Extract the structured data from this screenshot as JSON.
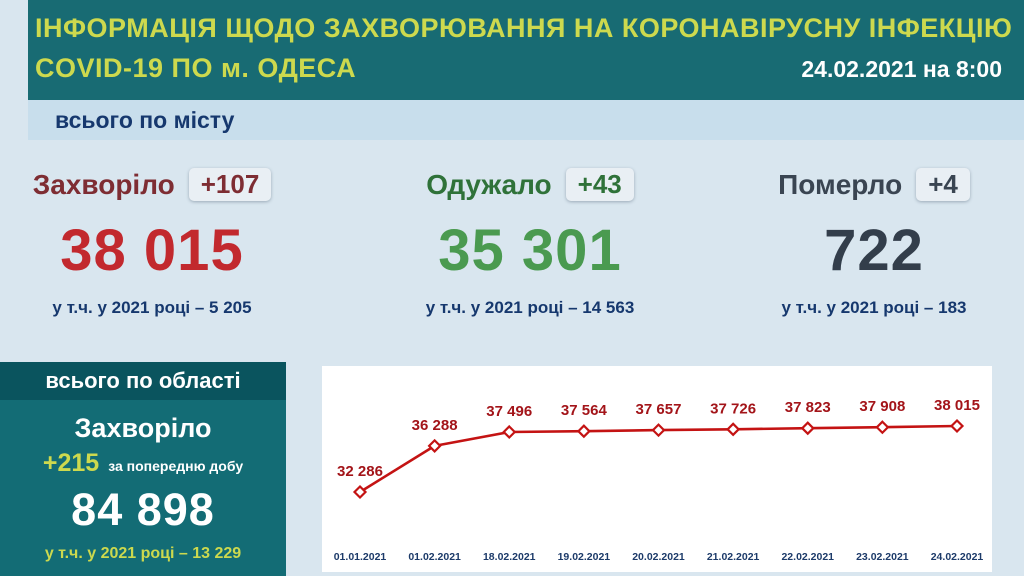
{
  "header": {
    "title_line1": "ІНФОРМАЦІЯ ЩОДО ЗАХВОРЮВАННЯ НА КОРОНАВІРУСНУ ІНФЕКЦІЮ",
    "title_line2": "COVID-19 ПО м. ОДЕСА",
    "date": "24.02.2021 на 8:00"
  },
  "city": {
    "label": "всього по місту",
    "stats": [
      {
        "title": "Захворіло",
        "delta": "+107",
        "value": "38 015",
        "subtitle": "у т.ч. у 2021 році – 5 205"
      },
      {
        "title": "Одужало",
        "delta": "+43",
        "value": "35 301",
        "subtitle": "у т.ч. у 2021 році – 14 563"
      },
      {
        "title": "Померло",
        "delta": "+4",
        "value": "722",
        "subtitle": "у т.ч. у 2021 році – 183"
      }
    ]
  },
  "oblast": {
    "label": "всього по області",
    "title": "Захворіло",
    "delta": "+215",
    "delta_caption": "за попередню добу",
    "value": "84 898",
    "subtitle": "у т.ч. у 2021 році – 13 229"
  },
  "colors": {
    "header_bg": "#186b73",
    "header_strip_bg": "#0a545e",
    "accent_yellow": "#cdd94e",
    "band_bg": "#c8deec",
    "page_bg": "#d9e6ef",
    "infected_red": "#c2292e",
    "infected_dark": "#7e2d33",
    "recovered_green": "#4a9a50",
    "deceased_dark": "#333e4b",
    "subtitle_navy": "#16386e",
    "chart_line": "#c41313"
  },
  "chart_data": {
    "type": "line",
    "x": [
      "01.01.2021",
      "01.02.2021",
      "18.02.2021",
      "19.02.2021",
      "20.02.2021",
      "21.02.2021",
      "22.02.2021",
      "23.02.2021",
      "24.02.2021"
    ],
    "values": [
      32286,
      36288,
      37496,
      37564,
      37657,
      37726,
      37823,
      37908,
      38015
    ],
    "point_labels": [
      "32 286",
      "36 288",
      "37 496",
      "37 564",
      "37 657",
      "37 726",
      "37 823",
      "37 908",
      "38 015"
    ],
    "ylim": [
      32286,
      38015
    ],
    "grid": false,
    "legend": false,
    "marker": "diamond-open",
    "line_color": "#c41313",
    "label_color": "#a31419",
    "axis_label_color": "#1c3a69"
  }
}
